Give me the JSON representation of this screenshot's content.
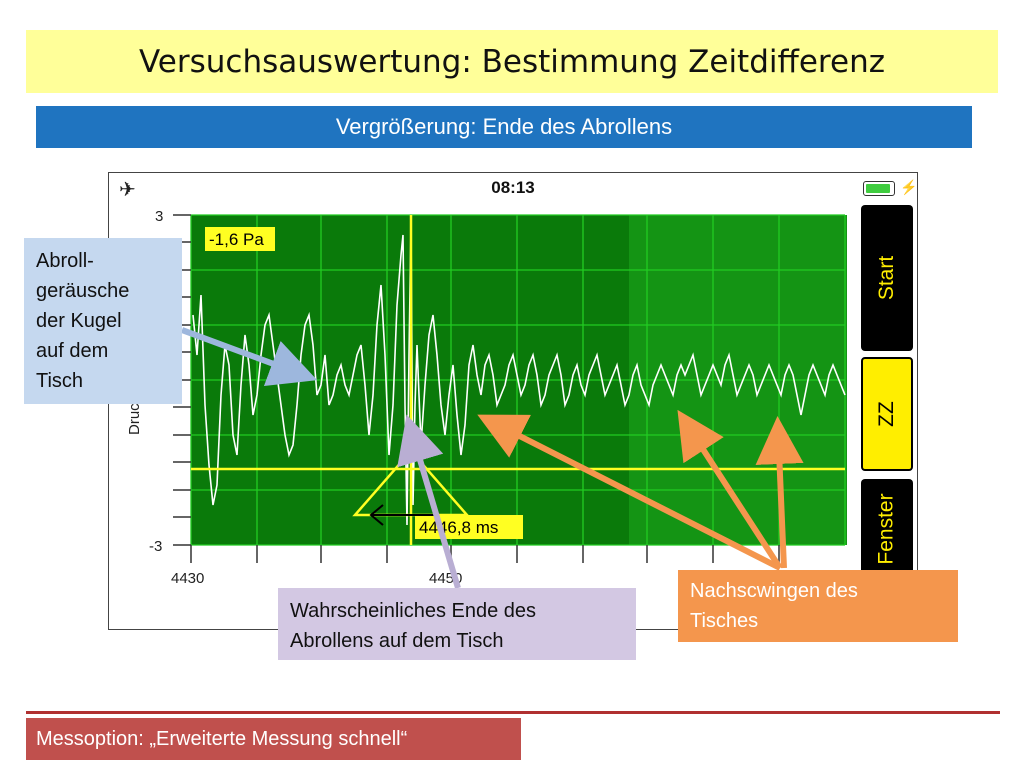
{
  "slide": {
    "title": "Versuchsauswertung: Bestimmung Zeitdifferenz",
    "subtitle": "Vergrößerung: Ende des Abrollens",
    "footer": "Messoption: „Erweiterte Messung schnell“"
  },
  "phone": {
    "status_time": "08:13",
    "buttons": {
      "start": "Start",
      "zz": "ZZ",
      "fenster": "Fenster"
    },
    "plot": {
      "y_ticks": [
        "3",
        "-3"
      ],
      "x_ticks": [
        "4430",
        "4450"
      ],
      "y_label": "Druck",
      "value_readout": "-1,6 Pa",
      "time_readout": "4446,8 ms"
    }
  },
  "callouts": {
    "abroll": [
      "Abroll-",
      "geräusche",
      "der Kugel",
      "auf dem",
      "Tisch"
    ],
    "ende": [
      "Wahrscheinliches Ende des",
      "Abrollens auf dem Tisch"
    ],
    "nachschwingen": [
      "Nachscwingen des",
      "Tisches"
    ]
  },
  "colors": {
    "title_bg": "#ffff99",
    "subtitle_bg": "#1f74c0",
    "plot_dark": "#0a7a0a",
    "plot_light": "#149414",
    "grid": "#22cc22",
    "signal": "#ffffff",
    "cursor": "#ffff22",
    "callout_blue": "#c5d8ef",
    "callout_lav": "#d3c8e3",
    "callout_orange": "#f4964d",
    "footer_bg": "#c0504d"
  }
}
